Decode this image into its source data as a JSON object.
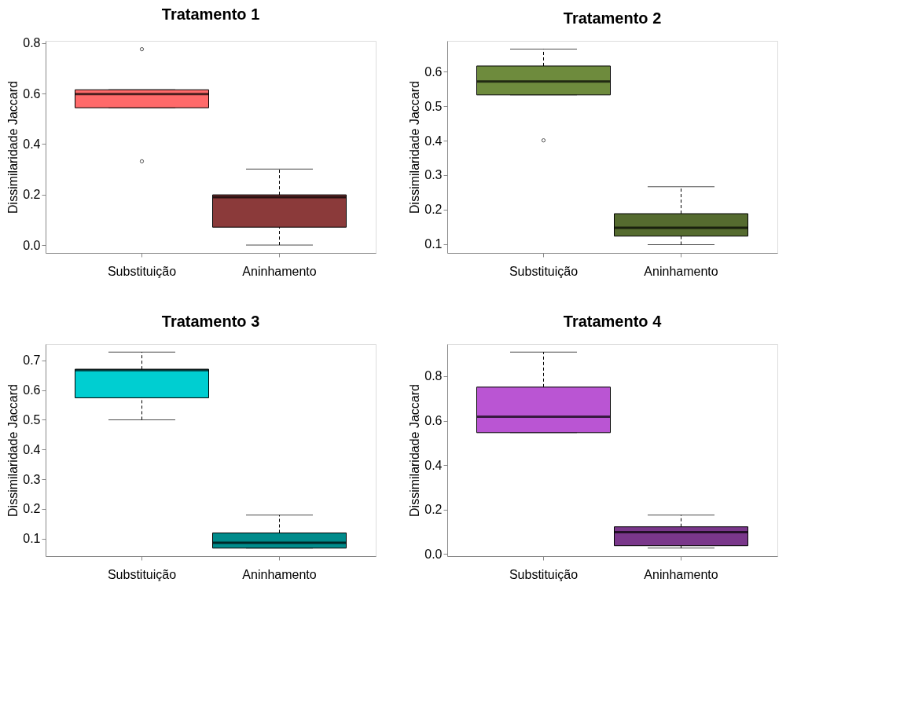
{
  "chart_data": [
    {
      "type": "box",
      "title": "Tratamento 1",
      "ylabel": "Dissimilaridade Jaccard",
      "categories": [
        "Substituição",
        "Aninhamento"
      ],
      "colors": [
        "#ff6a6a",
        "#8b3a3a"
      ],
      "ylim": [
        -0.031,
        0.809
      ],
      "yticks": [
        {
          "value": 0,
          "label": "0.0"
        },
        0.2,
        0.4,
        0.6,
        0.8
      ],
      "grid": false,
      "boxes": [
        {
          "low": 0.544,
          "q1": 0.544,
          "median": 0.598,
          "q3": 0.615,
          "high": 0.615,
          "outliers": [
            0.776,
            0.332
          ]
        },
        {
          "low": 0.0,
          "q1": 0.071,
          "median": 0.19,
          "q3": 0.199,
          "high": 0.301
        }
      ]
    },
    {
      "type": "box",
      "title": "Tratamento 2",
      "ylabel": "Dissimilaridade Jaccard",
      "categories": [
        "Substituição",
        "Aninhamento"
      ],
      "colors": [
        "#6e8b3d",
        "#556b2f"
      ],
      "ylim": [
        0.074,
        0.69
      ],
      "yticks": [
        0.1,
        0.2,
        0.3,
        0.4,
        0.5,
        0.6
      ],
      "grid": false,
      "boxes": [
        {
          "low": 0.533,
          "q1": 0.533,
          "median": 0.572,
          "q3": 0.617,
          "high": 0.666,
          "outliers": [
            0.401
          ]
        },
        {
          "low": 0.098,
          "q1": 0.123,
          "median": 0.147,
          "q3": 0.188,
          "high": 0.266
        }
      ]
    },
    {
      "type": "box",
      "title": "Tratamento 3",
      "ylabel": "Dissimilaridade Jaccard",
      "categories": [
        "Substituição",
        "Aninhamento"
      ],
      "colors": [
        "#00ced1",
        "#008b8b"
      ],
      "ylim": [
        0.041,
        0.755
      ],
      "yticks": [
        0.1,
        0.2,
        0.3,
        0.4,
        0.5,
        0.6,
        0.7
      ],
      "grid": false,
      "boxes": [
        {
          "low": 0.5,
          "q1": 0.574,
          "median": 0.667,
          "q3": 0.67,
          "high": 0.728
        },
        {
          "low": 0.068,
          "q1": 0.068,
          "median": 0.086,
          "q3": 0.119,
          "high": 0.179
        }
      ]
    },
    {
      "type": "box",
      "title": "Tratamento 4",
      "ylabel": "Dissimilaridade Jaccard",
      "categories": [
        "Substituição",
        "Aninhamento"
      ],
      "colors": [
        "#ba55d3",
        "#7a378b"
      ],
      "ylim": [
        -0.01,
        0.945
      ],
      "yticks": [
        {
          "value": 0,
          "label": "0.0"
        },
        0.2,
        0.4,
        0.6,
        0.8
      ],
      "grid": false,
      "boxes": [
        {
          "low": 0.546,
          "q1": 0.546,
          "median": 0.618,
          "q3": 0.751,
          "high": 0.909
        },
        {
          "low": 0.026,
          "q1": 0.037,
          "median": 0.098,
          "q3": 0.122,
          "high": 0.175
        }
      ]
    }
  ]
}
